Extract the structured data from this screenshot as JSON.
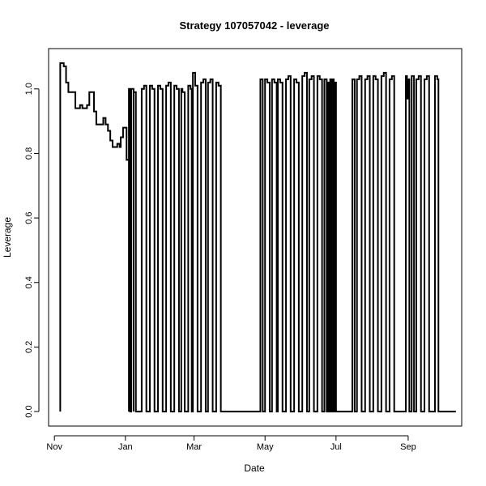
{
  "chart_data": {
    "type": "line",
    "step": true,
    "title": "Strategy 107057042 - leverage",
    "xlabel": "Date",
    "ylabel": "Leverage",
    "xlim": [
      "2014-10-27",
      "2015-10-17"
    ],
    "ylim": [
      -0.045,
      1.125
    ],
    "grid": false,
    "legend": "none",
    "line_color": "#000000",
    "x_ticks": [
      {
        "date": "2014-11-01",
        "label": "Nov"
      },
      {
        "date": "2015-01-01",
        "label": "Jan"
      },
      {
        "date": "2015-03-01",
        "label": "Mar"
      },
      {
        "date": "2015-05-01",
        "label": "May"
      },
      {
        "date": "2015-07-01",
        "label": "Jul"
      },
      {
        "date": "2015-09-01",
        "label": "Sep"
      }
    ],
    "y_ticks": [
      {
        "value": 0.0,
        "label": "0.0"
      },
      {
        "value": 0.2,
        "label": "0.2"
      },
      {
        "value": 0.4,
        "label": "0.4"
      },
      {
        "value": 0.6,
        "label": "0.6"
      },
      {
        "value": 0.8,
        "label": "0.8"
      },
      {
        "value": 1.0,
        "label": "1.0"
      }
    ],
    "series": [
      {
        "points": [
          [
            "2014-11-06",
            0
          ],
          [
            "2014-11-06",
            1.08
          ],
          [
            "2014-11-09",
            1.07
          ],
          [
            "2014-11-11",
            1.02
          ],
          [
            "2014-11-13",
            0.99
          ],
          [
            "2014-11-19",
            0.94
          ],
          [
            "2014-11-23",
            0.95
          ],
          [
            "2014-11-25",
            0.94
          ],
          [
            "2014-11-29",
            0.95
          ],
          [
            "2014-12-01",
            0.99
          ],
          [
            "2014-12-05",
            0.93
          ],
          [
            "2014-12-07",
            0.89
          ],
          [
            "2014-12-13",
            0.91
          ],
          [
            "2014-12-15",
            0.89
          ],
          [
            "2014-12-17",
            0.87
          ],
          [
            "2014-12-19",
            0.84
          ],
          [
            "2014-12-21",
            0.82
          ],
          [
            "2014-12-25",
            0.83
          ],
          [
            "2014-12-27",
            0.82
          ],
          [
            "2014-12-28",
            0.85
          ],
          [
            "2014-12-30",
            0.88
          ],
          [
            "2015-01-02",
            0.78
          ],
          [
            "2015-01-04",
            0
          ],
          [
            "2015-01-04",
            1.0
          ],
          [
            "2015-01-05",
            0
          ],
          [
            "2015-01-06",
            0
          ],
          [
            "2015-01-06",
            1.0
          ],
          [
            "2015-01-08",
            0
          ],
          [
            "2015-01-08",
            0
          ],
          [
            "2015-01-08",
            0.99
          ],
          [
            "2015-01-10",
            0
          ],
          [
            "2015-01-15",
            0
          ],
          [
            "2015-01-15",
            1.0
          ],
          [
            "2015-01-17",
            1.01
          ],
          [
            "2015-01-19",
            0
          ],
          [
            "2015-01-22",
            0
          ],
          [
            "2015-01-22",
            1.01
          ],
          [
            "2015-01-24",
            1.0
          ],
          [
            "2015-01-26",
            0
          ],
          [
            "2015-01-29",
            0
          ],
          [
            "2015-01-29",
            1.01
          ],
          [
            "2015-01-31",
            1.0
          ],
          [
            "2015-02-02",
            0
          ],
          [
            "2015-02-05",
            0
          ],
          [
            "2015-02-05",
            1.01
          ],
          [
            "2015-02-07",
            1.02
          ],
          [
            "2015-02-09",
            0
          ],
          [
            "2015-02-12",
            0
          ],
          [
            "2015-02-12",
            1.01
          ],
          [
            "2015-02-14",
            1.0
          ],
          [
            "2015-02-16",
            0
          ],
          [
            "2015-02-18",
            0
          ],
          [
            "2015-02-18",
            1.0
          ],
          [
            "2015-02-19",
            0.99
          ],
          [
            "2015-02-21",
            0
          ],
          [
            "2015-02-24",
            0
          ],
          [
            "2015-02-24",
            1.01
          ],
          [
            "2015-02-26",
            1.0
          ],
          [
            "2015-02-27",
            0
          ],
          [
            "2015-02-28",
            0
          ],
          [
            "2015-02-28",
            1.05
          ],
          [
            "2015-03-02",
            1.01
          ],
          [
            "2015-03-04",
            0
          ],
          [
            "2015-03-07",
            0
          ],
          [
            "2015-03-07",
            1.02
          ],
          [
            "2015-03-09",
            1.03
          ],
          [
            "2015-03-11",
            0
          ],
          [
            "2015-03-13",
            0
          ],
          [
            "2015-03-13",
            1.02
          ],
          [
            "2015-03-15",
            1.03
          ],
          [
            "2015-03-17",
            0
          ],
          [
            "2015-03-20",
            0
          ],
          [
            "2015-03-20",
            1.02
          ],
          [
            "2015-03-22",
            1.01
          ],
          [
            "2015-03-24",
            0
          ],
          [
            "2015-04-27",
            0
          ],
          [
            "2015-04-27",
            1.03
          ],
          [
            "2015-04-29",
            0
          ],
          [
            "2015-05-01",
            0
          ],
          [
            "2015-05-01",
            1.03
          ],
          [
            "2015-05-03",
            1.02
          ],
          [
            "2015-05-05",
            0
          ],
          [
            "2015-05-07",
            0
          ],
          [
            "2015-05-07",
            1.03
          ],
          [
            "2015-05-09",
            1.02
          ],
          [
            "2015-05-11",
            0
          ],
          [
            "2015-05-12",
            0
          ],
          [
            "2015-05-12",
            1.03
          ],
          [
            "2015-05-14",
            1.02
          ],
          [
            "2015-05-16",
            0
          ],
          [
            "2015-05-19",
            0
          ],
          [
            "2015-05-19",
            1.03
          ],
          [
            "2015-05-21",
            1.04
          ],
          [
            "2015-05-23",
            0
          ],
          [
            "2015-05-26",
            0
          ],
          [
            "2015-05-26",
            1.03
          ],
          [
            "2015-05-28",
            1.02
          ],
          [
            "2015-05-30",
            0
          ],
          [
            "2015-06-02",
            0
          ],
          [
            "2015-06-02",
            1.04
          ],
          [
            "2015-06-04",
            1.05
          ],
          [
            "2015-06-06",
            0
          ],
          [
            "2015-06-08",
            0
          ],
          [
            "2015-06-08",
            1.03
          ],
          [
            "2015-06-10",
            1.04
          ],
          [
            "2015-06-12",
            0
          ],
          [
            "2015-06-15",
            0
          ],
          [
            "2015-06-15",
            1.04
          ],
          [
            "2015-06-17",
            1.03
          ],
          [
            "2015-06-19",
            0
          ],
          [
            "2015-06-21",
            0
          ],
          [
            "2015-06-21",
            1.03
          ],
          [
            "2015-06-23",
            0
          ],
          [
            "2015-06-24",
            0
          ],
          [
            "2015-06-24",
            1.02
          ],
          [
            "2015-06-25",
            0
          ],
          [
            "2015-06-26",
            0
          ],
          [
            "2015-06-26",
            1.03
          ],
          [
            "2015-06-27",
            0
          ],
          [
            "2015-06-28",
            0
          ],
          [
            "2015-06-28",
            1.03
          ],
          [
            "2015-06-29",
            0
          ],
          [
            "2015-06-30",
            0
          ],
          [
            "2015-06-30",
            1.02
          ],
          [
            "2015-07-01",
            0
          ],
          [
            "2015-07-07",
            0
          ],
          [
            "2015-07-15",
            0
          ],
          [
            "2015-07-15",
            1.03
          ],
          [
            "2015-07-17",
            0
          ],
          [
            "2015-07-19",
            0
          ],
          [
            "2015-07-19",
            1.03
          ],
          [
            "2015-07-21",
            1.04
          ],
          [
            "2015-07-23",
            0
          ],
          [
            "2015-07-26",
            0
          ],
          [
            "2015-07-26",
            1.03
          ],
          [
            "2015-07-28",
            1.04
          ],
          [
            "2015-07-30",
            0
          ],
          [
            "2015-08-02",
            0
          ],
          [
            "2015-08-02",
            1.04
          ],
          [
            "2015-08-04",
            1.03
          ],
          [
            "2015-08-06",
            0
          ],
          [
            "2015-08-09",
            0
          ],
          [
            "2015-08-09",
            1.04
          ],
          [
            "2015-08-11",
            1.05
          ],
          [
            "2015-08-13",
            0
          ],
          [
            "2015-08-16",
            0
          ],
          [
            "2015-08-16",
            1.03
          ],
          [
            "2015-08-18",
            1.04
          ],
          [
            "2015-08-20",
            0
          ],
          [
            "2015-08-30",
            0
          ],
          [
            "2015-08-30",
            1.04
          ],
          [
            "2015-08-31",
            0.97
          ],
          [
            "2015-09-01",
            1.03
          ],
          [
            "2015-09-02",
            0
          ],
          [
            "2015-09-04",
            0
          ],
          [
            "2015-09-04",
            1.04
          ],
          [
            "2015-09-06",
            0
          ],
          [
            "2015-09-08",
            0
          ],
          [
            "2015-09-08",
            1.03
          ],
          [
            "2015-09-10",
            1.04
          ],
          [
            "2015-09-12",
            0
          ],
          [
            "2015-09-15",
            0
          ],
          [
            "2015-09-15",
            1.03
          ],
          [
            "2015-09-17",
            1.04
          ],
          [
            "2015-09-19",
            0
          ],
          [
            "2015-09-24",
            0
          ],
          [
            "2015-09-24",
            1.04
          ],
          [
            "2015-09-26",
            1.03
          ],
          [
            "2015-09-27",
            0
          ],
          [
            "2015-10-12",
            0
          ]
        ]
      }
    ]
  }
}
